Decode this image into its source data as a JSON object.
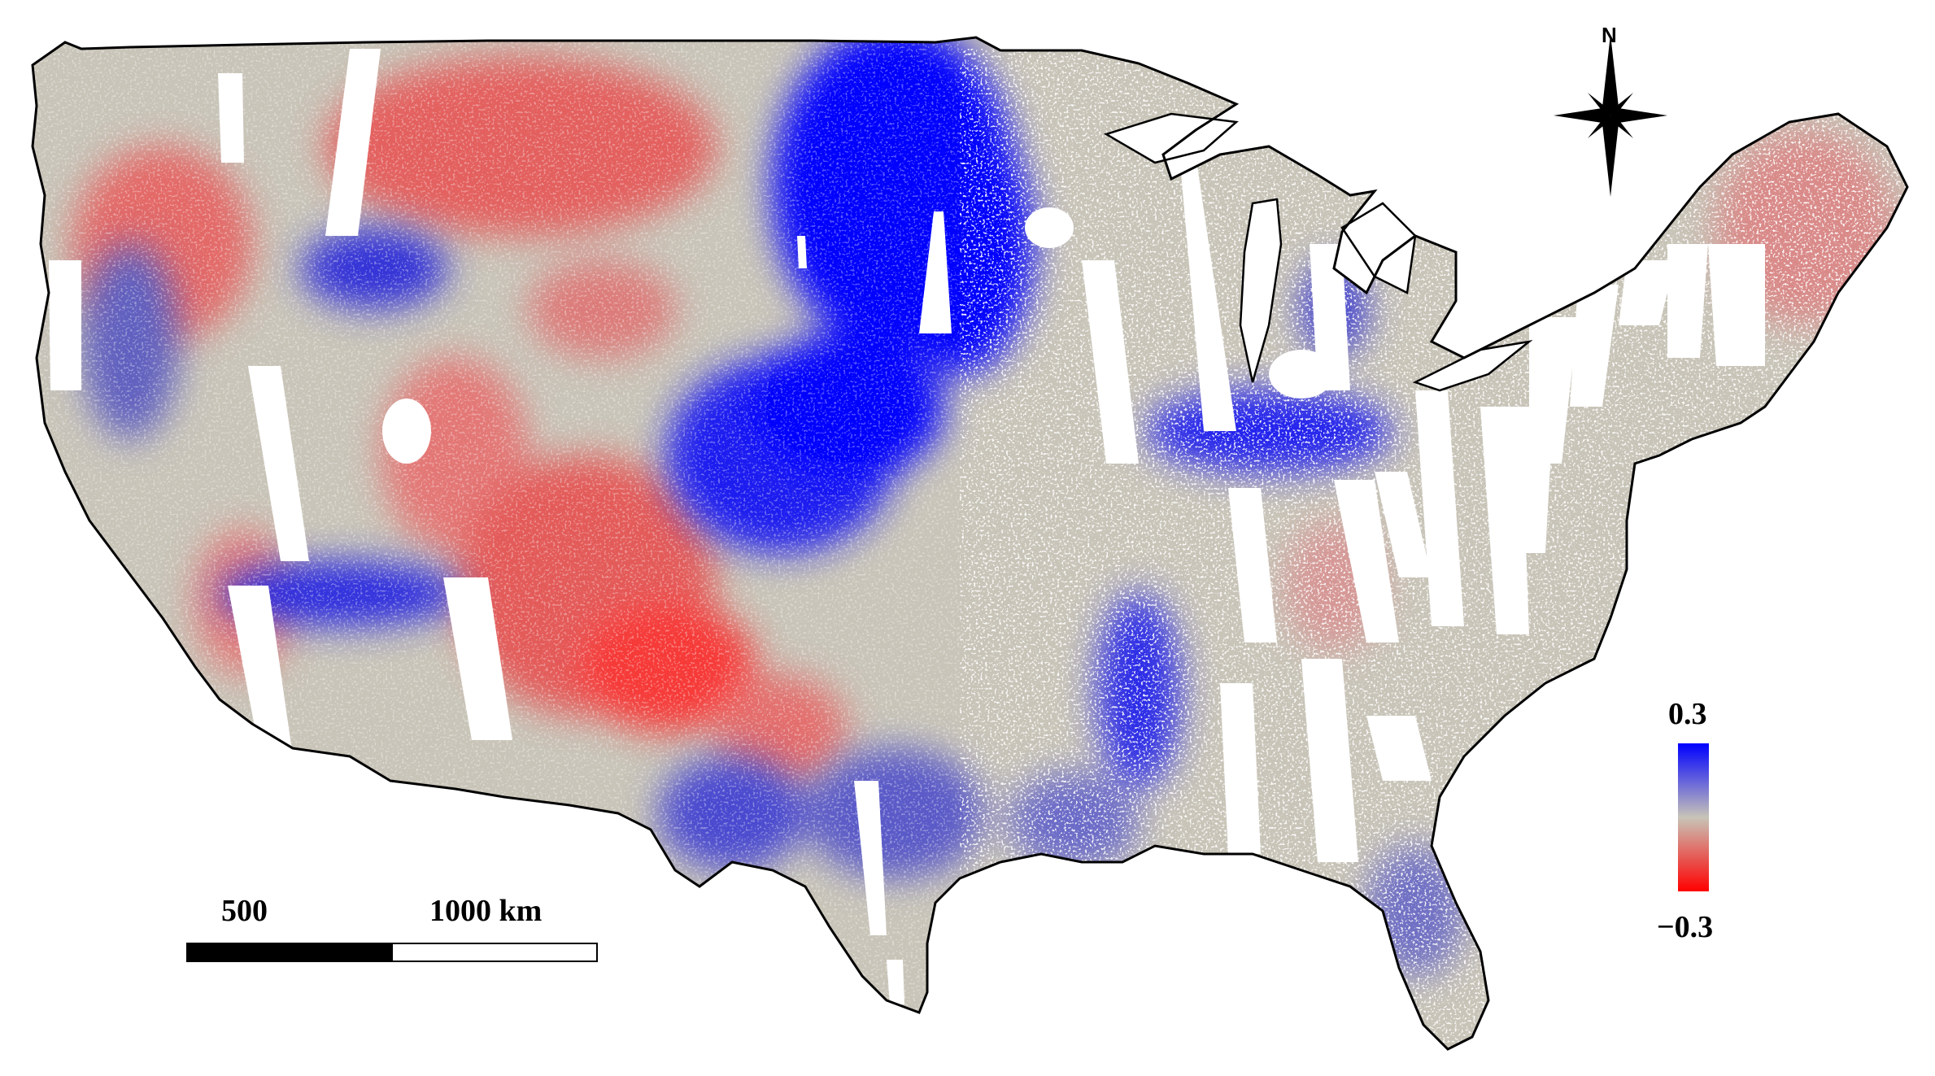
{
  "map": {
    "colors": {
      "positive": "#0000ff",
      "neutral": "#c8c4b8",
      "negative": "#ff0000",
      "no_data": "#ffffff",
      "coastline": "#000000"
    }
  },
  "north_arrow": {
    "label": "N",
    "icon": "north-arrow-compass-icon"
  },
  "scale_bar": {
    "label_mid": "500",
    "label_end": "1000 km"
  },
  "legend": {
    "max_label": "0.3",
    "min_label": "−0.3",
    "range": [
      -0.3,
      0.3
    ]
  }
}
